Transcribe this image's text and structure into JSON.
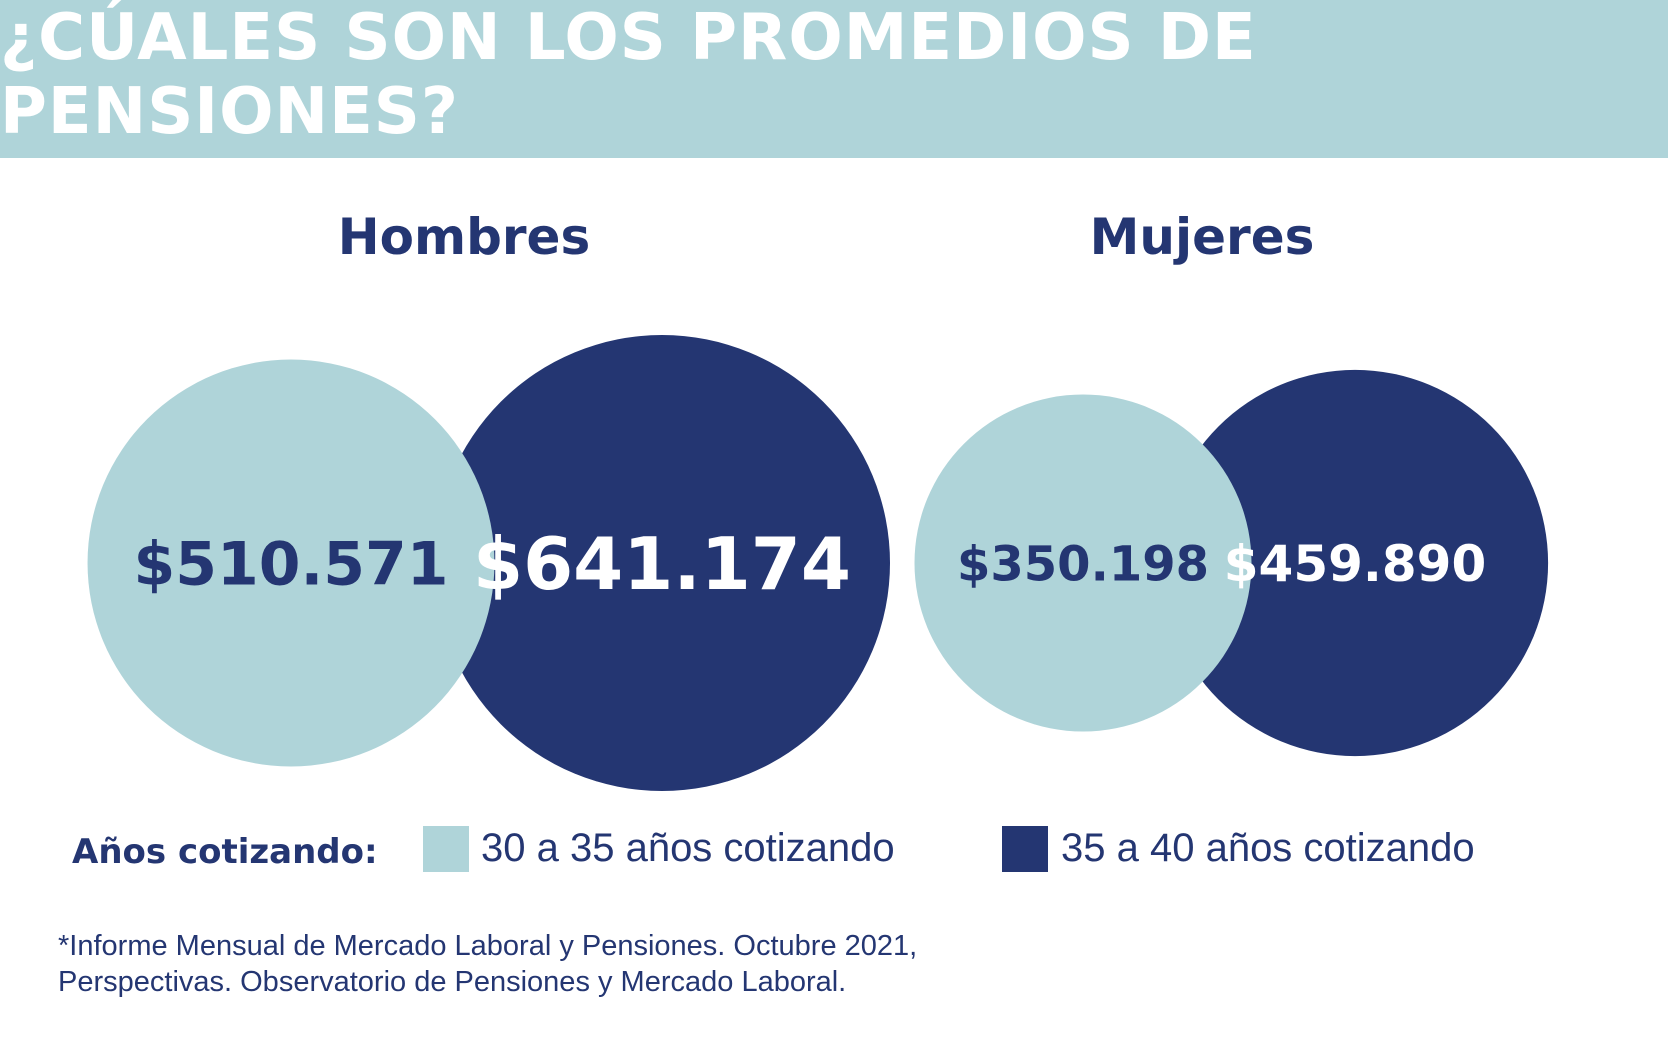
{
  "header": {
    "title": "¿CÚALES SON LOS PROMEDIOS DE PENSIONES?"
  },
  "colors": {
    "light": "#afd4d9",
    "dark": "#243672",
    "white": "#ffffff"
  },
  "chart_data": {
    "type": "bubble",
    "groups": [
      {
        "name": "Hombres",
        "values": [
          {
            "label": "$510.571",
            "value": 510571,
            "series": "30 a 35 años cotizando"
          },
          {
            "label": "$641.174",
            "value": 641174,
            "series": "35 a 40 años cotizando"
          }
        ]
      },
      {
        "name": "Mujeres",
        "values": [
          {
            "label": "$350.198",
            "value": 350198,
            "series": "30 a 35 años cotizando"
          },
          {
            "label": "$459.890",
            "value": 459890,
            "series": "35 a 40 años cotizando"
          }
        ]
      }
    ],
    "series": [
      {
        "name": "30 a 35 años cotizando",
        "color": "#afd4d9"
      },
      {
        "name": "35 a 40 años cotizando",
        "color": "#243672"
      }
    ],
    "legend_title": "Años cotizando:",
    "legend_position": "bottom"
  },
  "source": {
    "line1": "*Informe Mensual de Mercado Laboral y Pensiones. Octubre 2021,",
    "line2": "Perspectivas. Observatorio de Pensiones y Mercado Laboral."
  }
}
